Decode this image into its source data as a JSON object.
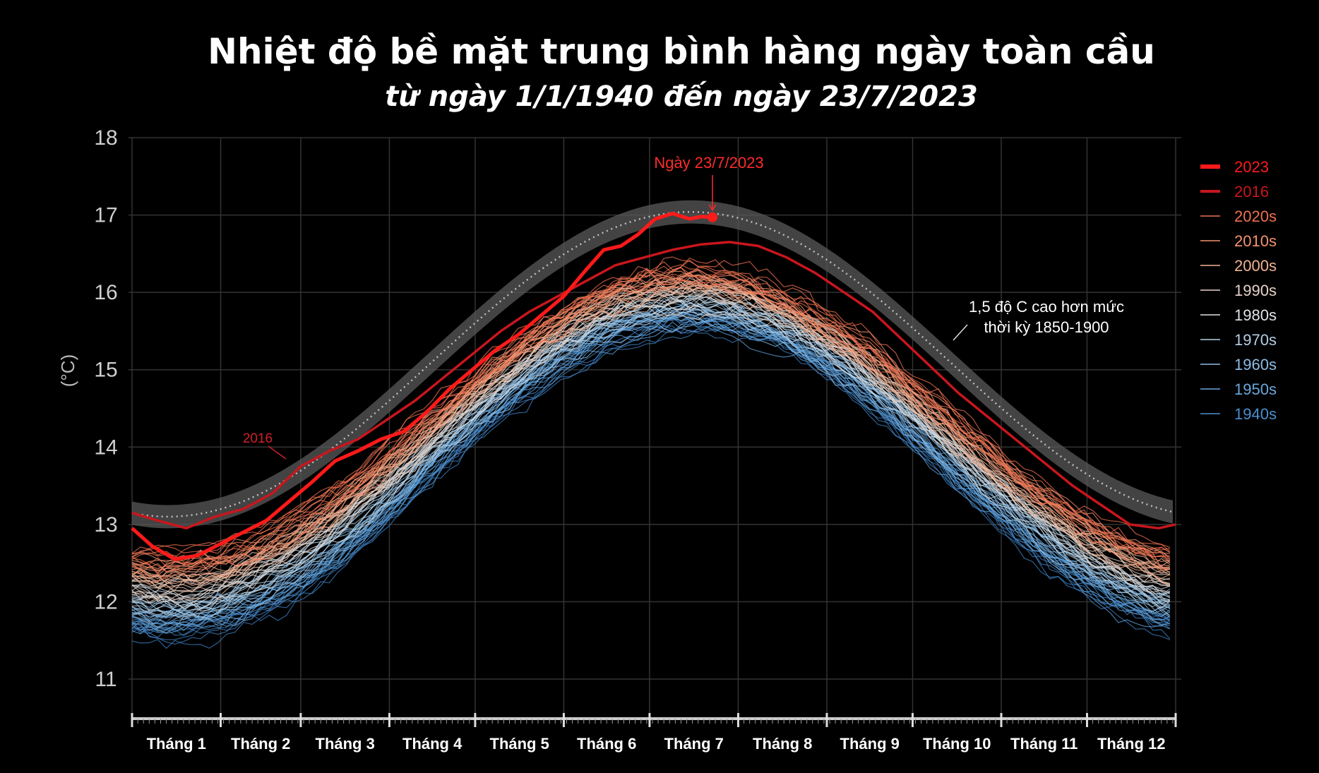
{
  "chart_data": {
    "type": "line",
    "title": "Nhiệt độ bề mặt trung bình hàng ngày toàn cầu",
    "subtitle": "từ ngày 1/1/1940 đến ngày 23/7/2023",
    "ylabel": "(°C)",
    "ylim": [
      11,
      18
    ],
    "yticks": [
      11,
      12,
      13,
      14,
      15,
      16,
      17,
      18
    ],
    "months": [
      "Tháng 1",
      "Tháng 2",
      "Tháng 3",
      "Tháng 4",
      "Tháng 5",
      "Tháng 6",
      "Tháng 7",
      "Tháng 8",
      "Tháng 9",
      "Tháng 10",
      "Tháng 11",
      "Tháng 12"
    ],
    "grid": true,
    "legend_position": "right",
    "legend": [
      {
        "label": "2023",
        "color": "#ff1a1a",
        "weight": "bold"
      },
      {
        "label": "2016",
        "color": "#c8161d",
        "weight": "medium"
      },
      {
        "label": "2020s",
        "color": "#f0704f",
        "weight": "thin"
      },
      {
        "label": "2010s",
        "color": "#f4936f",
        "weight": "thin"
      },
      {
        "label": "2000s",
        "color": "#f3b394",
        "weight": "thin"
      },
      {
        "label": "1990s",
        "color": "#e7d3c9",
        "weight": "thin"
      },
      {
        "label": "1980s",
        "color": "#dfe4e8",
        "weight": "thin"
      },
      {
        "label": "1970s",
        "color": "#b3cfe6",
        "weight": "thin"
      },
      {
        "label": "1960s",
        "color": "#8dbde6",
        "weight": "thin"
      },
      {
        "label": "1950s",
        "color": "#6aa8dc",
        "weight": "thin"
      },
      {
        "label": "1940s",
        "color": "#4a8fcf",
        "weight": "thin"
      }
    ],
    "series": [
      {
        "name": "2023",
        "color": "#ff1a1a",
        "x_day": [
          1,
          8,
          16,
          24,
          32,
          40,
          48,
          56,
          64,
          72,
          80,
          88,
          96,
          104,
          112,
          120,
          128,
          136,
          144,
          152,
          160,
          166,
          172,
          178,
          184,
          190,
          196,
          200,
          204
        ],
        "values": [
          12.95,
          12.72,
          12.55,
          12.6,
          12.75,
          12.9,
          13.05,
          13.3,
          13.55,
          13.82,
          13.95,
          14.1,
          14.2,
          14.45,
          14.75,
          15.0,
          15.25,
          15.45,
          15.7,
          15.95,
          16.3,
          16.55,
          16.6,
          16.75,
          16.95,
          17.02,
          16.95,
          16.98,
          16.97
        ]
      },
      {
        "name": "2016",
        "color": "#c8161d",
        "x_day": [
          1,
          10,
          20,
          30,
          40,
          50,
          60,
          70,
          80,
          90,
          100,
          110,
          120,
          130,
          140,
          150,
          160,
          170,
          180,
          190,
          200,
          210,
          220,
          230,
          240,
          250,
          260,
          270,
          280,
          290,
          300,
          310,
          320,
          330,
          340,
          350,
          360,
          366
        ],
        "values": [
          13.15,
          13.05,
          12.95,
          13.1,
          13.2,
          13.4,
          13.75,
          13.95,
          14.1,
          14.35,
          14.6,
          14.9,
          15.2,
          15.5,
          15.75,
          15.95,
          16.15,
          16.35,
          16.45,
          16.55,
          16.62,
          16.65,
          16.6,
          16.45,
          16.25,
          16.0,
          15.75,
          15.4,
          15.05,
          14.7,
          14.4,
          14.1,
          13.8,
          13.5,
          13.25,
          13.0,
          12.95,
          13.0
        ]
      }
    ],
    "threshold_band": {
      "label": "1,5 độ C cao hơn mức thời kỳ 1850-1900",
      "amplitude": 1.97,
      "mean": 15.07
    },
    "annotations": [
      {
        "text": "Ngày 23/7/2023",
        "x_day": 204,
        "y": 16.97,
        "color": "#ff2b2b"
      },
      {
        "text": "2016",
        "x_day": 55,
        "y": 13.8,
        "color": "#d0202a"
      },
      {
        "text": "1,5 độ C cao hơn mức",
        "x_day": 315,
        "y": 15.9,
        "color": "#ffffff"
      },
      {
        "text": "thời kỳ 1850-1900",
        "x_day": 315,
        "y": 15.6,
        "color": "#ffffff"
      }
    ]
  }
}
